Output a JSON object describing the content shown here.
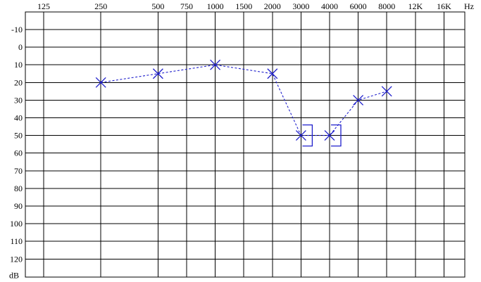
{
  "chart_data": {
    "type": "scatter",
    "title": "",
    "x_ticks": [
      "125",
      "250",
      "500",
      "750",
      "1000",
      "1500",
      "2000",
      "3000",
      "4000",
      "6000",
      "8000",
      "12K",
      "16K"
    ],
    "x_unit": "Hz",
    "y_unit": "dB",
    "y_ticks": [
      -10,
      0,
      10,
      20,
      30,
      40,
      50,
      60,
      70,
      80,
      90,
      100,
      110,
      120
    ],
    "ylim": [
      -10,
      120
    ],
    "y_inverted": true,
    "grid": true,
    "series_color": "#1f1fcc",
    "series": [
      {
        "marker": "x",
        "x": [
          "250",
          "500",
          "1000",
          "2000",
          "3000",
          "4000",
          "6000",
          "8000"
        ],
        "values": [
          20,
          15,
          10,
          15,
          50,
          50,
          30,
          25
        ],
        "connected": true,
        "line_style": "dashed"
      },
      {
        "marker": "bracket",
        "x": [
          "3000",
          "4000"
        ],
        "values": [
          50,
          50
        ]
      }
    ]
  }
}
